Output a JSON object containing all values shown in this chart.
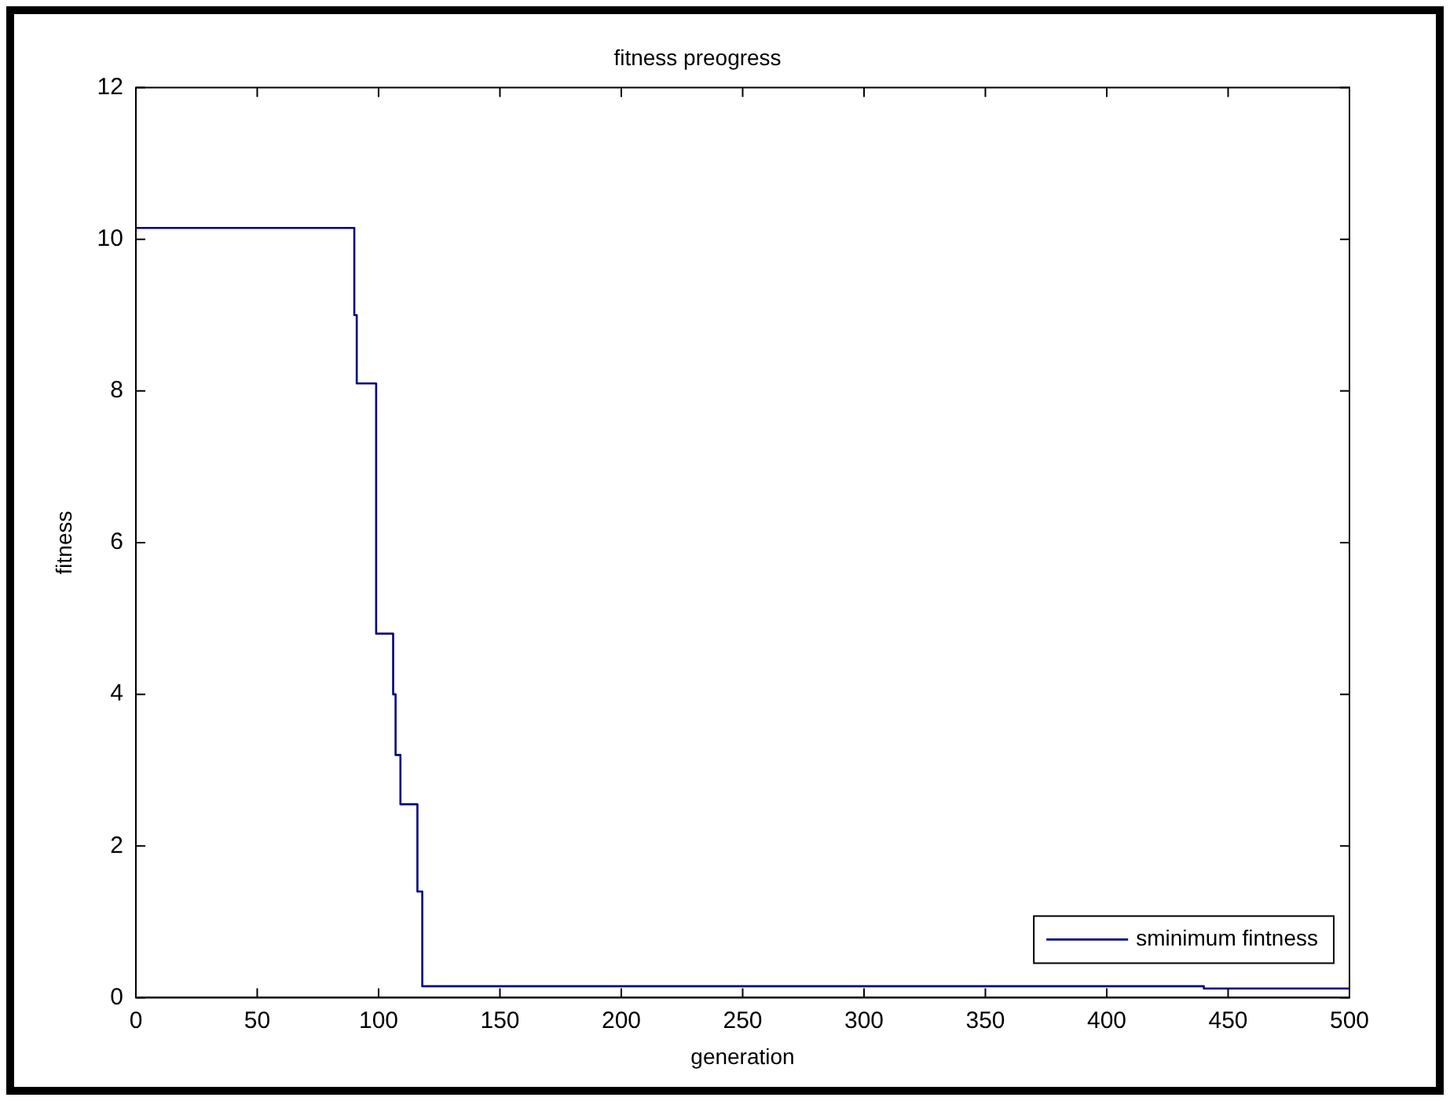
{
  "chart_data": {
    "type": "step",
    "title": "fitness preogress",
    "xlabel": "generation",
    "ylabel": "fitness",
    "xlim": [
      0,
      500
    ],
    "xticks": [
      0,
      50,
      100,
      150,
      200,
      250,
      300,
      350,
      400,
      450,
      500
    ],
    "ylim": [
      0,
      12
    ],
    "yticks": [
      0,
      2,
      4,
      6,
      8,
      10,
      12
    ],
    "grid": false,
    "legend": "bottom right",
    "series": [
      {
        "name": "sminimum fintness",
        "color": "#00007f",
        "x": [
          0,
          90,
          91,
          99,
          106,
          107,
          109,
          116,
          118,
          440,
          500
        ],
        "values": [
          10.15,
          9.0,
          8.1,
          4.8,
          4.0,
          3.2,
          2.55,
          1.4,
          0.15,
          0.12,
          0.12
        ]
      }
    ]
  }
}
